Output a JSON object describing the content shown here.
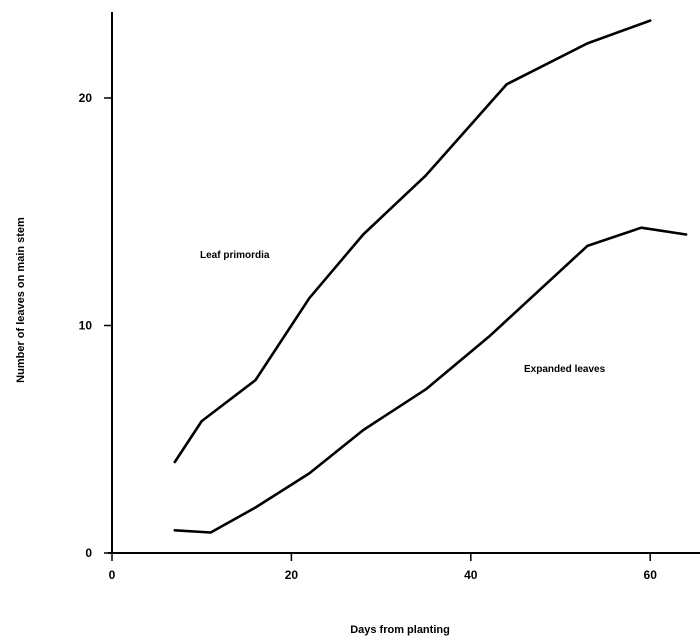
{
  "chart_data": {
    "type": "line",
    "title": "",
    "xlabel": "Days from planting",
    "ylabel": "Number of leaves on main stem",
    "xlim": [
      0,
      64
    ],
    "ylim": [
      0,
      24
    ],
    "x_ticks": [
      0,
      20,
      40,
      60
    ],
    "y_ticks": [
      0,
      10,
      20
    ],
    "grid": false,
    "series": [
      {
        "name": "Leaf primordia",
        "x": [
          7,
          10,
          16,
          22,
          28,
          35,
          44,
          53,
          60
        ],
        "y": [
          4.0,
          5.8,
          7.6,
          11.2,
          14.0,
          16.6,
          20.6,
          22.4,
          23.4
        ]
      },
      {
        "name": "Expanded leaves",
        "x": [
          7,
          11,
          16,
          22,
          28,
          35,
          42,
          53,
          59,
          64
        ],
        "y": [
          1.0,
          0.9,
          2.0,
          3.5,
          5.4,
          7.2,
          9.5,
          13.5,
          14.3,
          14.0
        ]
      }
    ]
  }
}
